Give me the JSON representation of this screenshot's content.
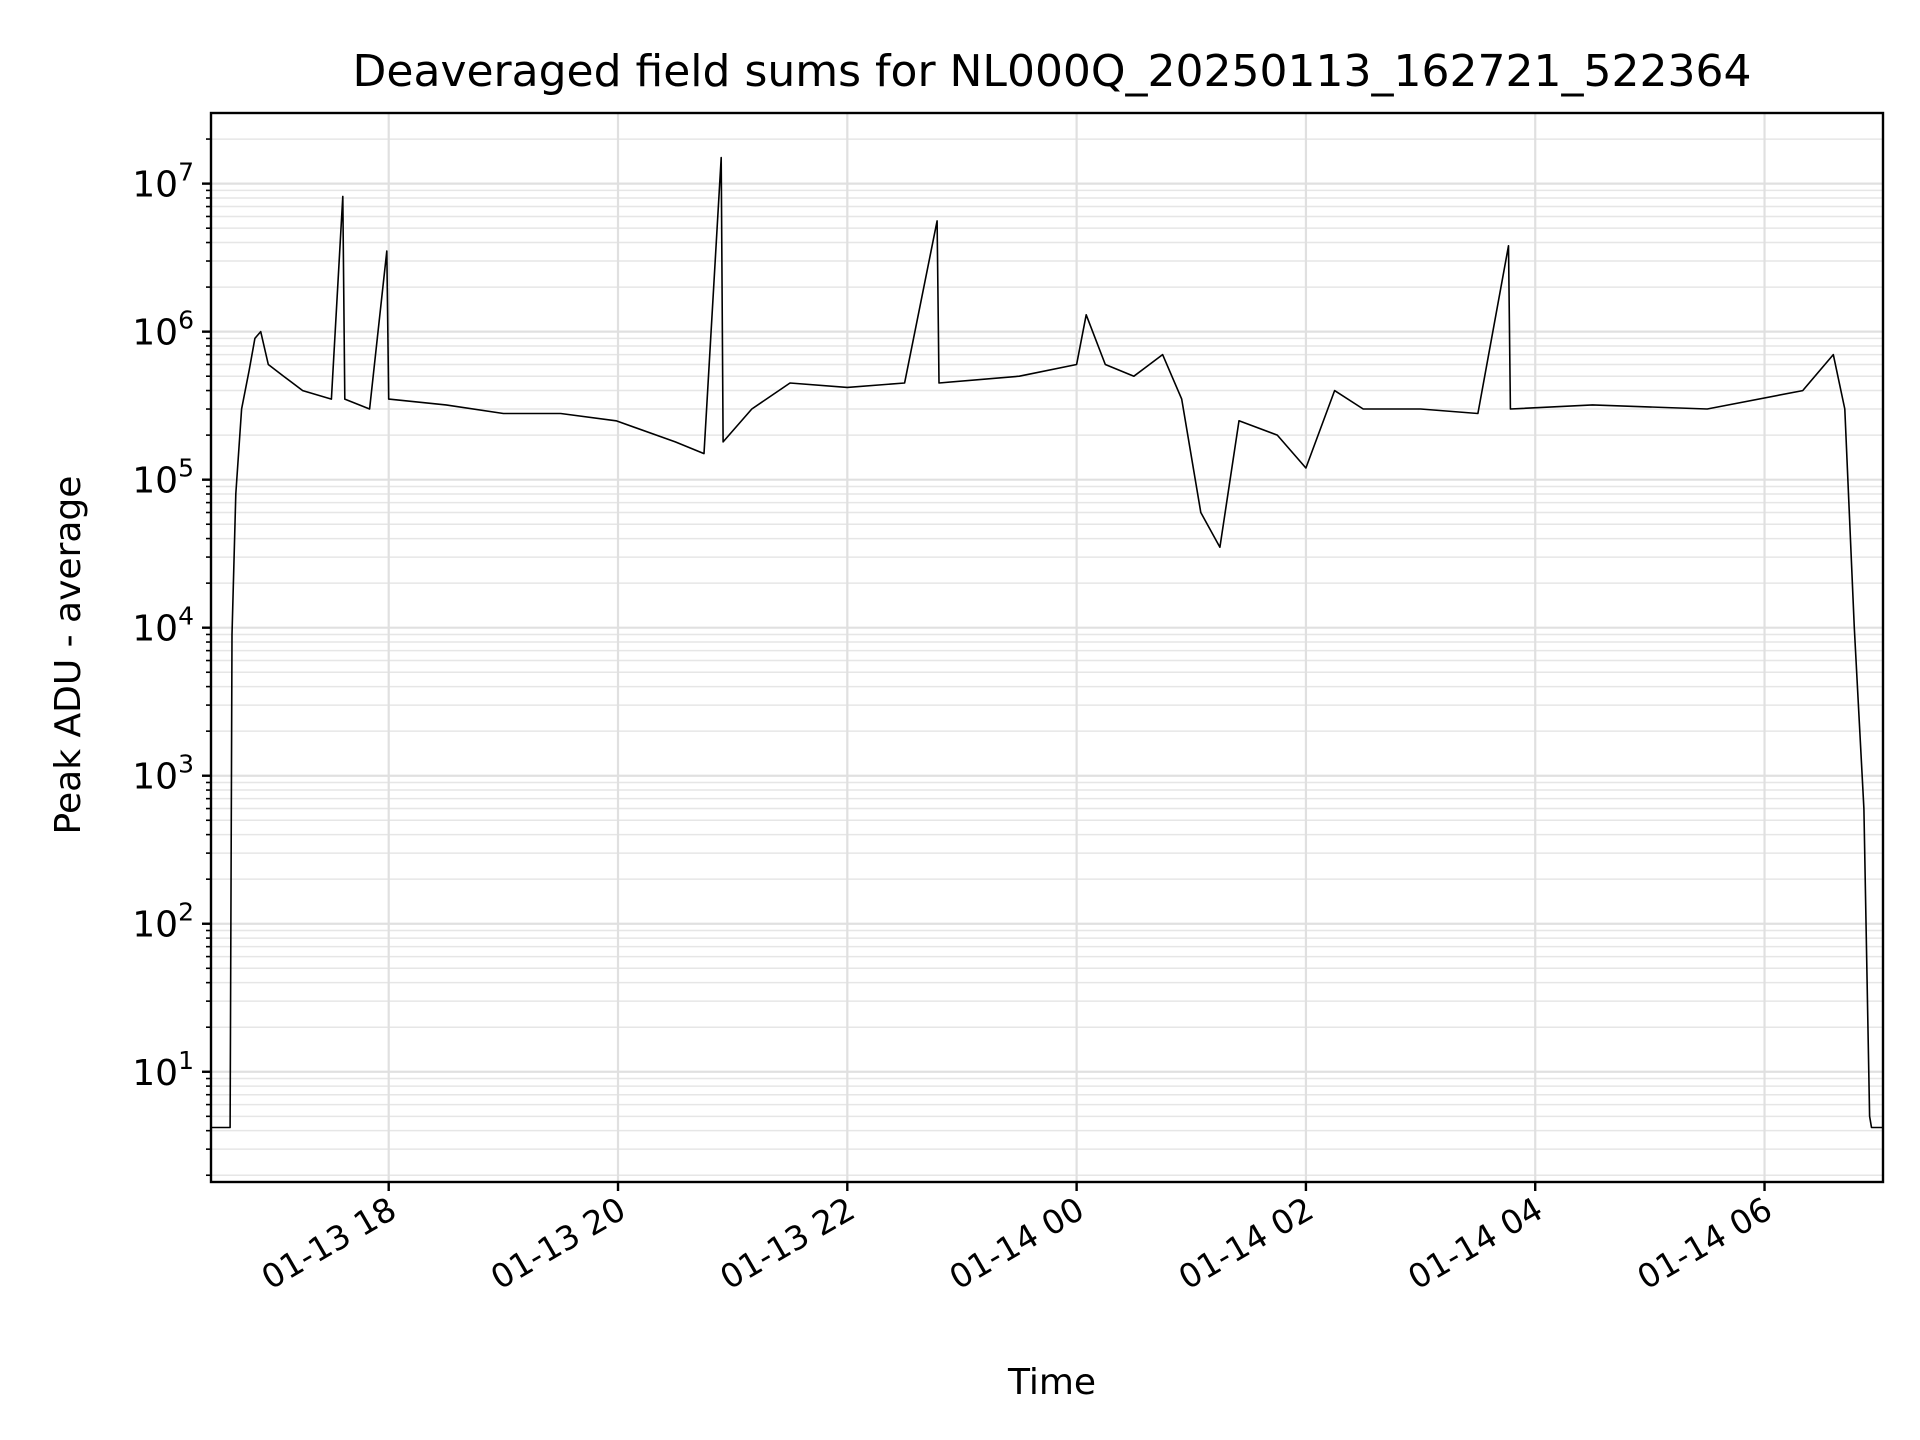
{
  "chart_data": {
    "type": "line",
    "title": "Deaveraged field sums for NL000Q_20250113_162721_522364",
    "xlabel": "Time",
    "ylabel": "Peak ADU - average",
    "yscale": "log",
    "ylim": [
      1.8,
      30000000
    ],
    "xlim": [
      "2025-01-13 16:27",
      "2025-01-14 07:02"
    ],
    "grid": "major and minor",
    "line_color": "#000000",
    "x_ticks": [
      {
        "t": "2025-01-13 18:00",
        "label": "01-13 18"
      },
      {
        "t": "2025-01-13 20:00",
        "label": "01-13 20"
      },
      {
        "t": "2025-01-13 22:00",
        "label": "01-13 22"
      },
      {
        "t": "2025-01-14 00:00",
        "label": "01-14 00"
      },
      {
        "t": "2025-01-14 02:00",
        "label": "01-14 02"
      },
      {
        "t": "2025-01-14 04:00",
        "label": "01-14 04"
      },
      {
        "t": "2025-01-14 06:00",
        "label": "01-14 06"
      }
    ],
    "y_ticks": [
      {
        "value": 10,
        "base": "10",
        "exp": "1"
      },
      {
        "value": 100,
        "base": "10",
        "exp": "2"
      },
      {
        "value": 1000,
        "base": "10",
        "exp": "3"
      },
      {
        "value": 10000,
        "base": "10",
        "exp": "4"
      },
      {
        "value": 100000,
        "base": "10",
        "exp": "5"
      },
      {
        "value": 1000000,
        "base": "10",
        "exp": "6"
      },
      {
        "value": 10000000,
        "base": "10",
        "exp": "7"
      }
    ],
    "series": [
      {
        "points": [
          [
            "2025-01-13 16:27",
            4.2
          ],
          [
            "2025-01-13 16:37",
            4.2
          ],
          [
            "2025-01-13 16:38",
            9000
          ],
          [
            "2025-01-13 16:40",
            80000
          ],
          [
            "2025-01-13 16:43",
            300000
          ],
          [
            "2025-01-13 16:47",
            550000
          ],
          [
            "2025-01-13 16:50",
            900000
          ],
          [
            "2025-01-13 16:53",
            1000000
          ],
          [
            "2025-01-13 16:57",
            600000
          ],
          [
            "2025-01-13 17:05",
            500000
          ],
          [
            "2025-01-13 17:15",
            400000
          ],
          [
            "2025-01-13 17:30",
            350000
          ],
          [
            "2025-01-13 17:36",
            8200000
          ],
          [
            "2025-01-13 17:37",
            350000
          ],
          [
            "2025-01-13 17:50",
            300000
          ],
          [
            "2025-01-13 17:59",
            3500000
          ],
          [
            "2025-01-13 18:00",
            350000
          ],
          [
            "2025-01-13 18:30",
            320000
          ],
          [
            "2025-01-13 19:00",
            280000
          ],
          [
            "2025-01-13 19:30",
            280000
          ],
          [
            "2025-01-13 19:59",
            250000
          ],
          [
            "2025-01-13 20:30",
            180000
          ],
          [
            "2025-01-13 20:45",
            150000
          ],
          [
            "2025-01-13 20:54",
            15000000
          ],
          [
            "2025-01-13 20:55",
            180000
          ],
          [
            "2025-01-13 21:10",
            300000
          ],
          [
            "2025-01-13 21:30",
            450000
          ],
          [
            "2025-01-13 22:00",
            420000
          ],
          [
            "2025-01-13 22:30",
            450000
          ],
          [
            "2025-01-13 22:47",
            5600000
          ],
          [
            "2025-01-13 22:48",
            450000
          ],
          [
            "2025-01-13 23:30",
            500000
          ],
          [
            "2025-01-14 00:00",
            600000
          ],
          [
            "2025-01-14 00:05",
            1300000
          ],
          [
            "2025-01-14 00:15",
            600000
          ],
          [
            "2025-01-14 00:30",
            500000
          ],
          [
            "2025-01-14 00:45",
            700000
          ],
          [
            "2025-01-14 00:55",
            350000
          ],
          [
            "2025-01-14 01:05",
            60000
          ],
          [
            "2025-01-14 01:15",
            35000
          ],
          [
            "2025-01-14 01:25",
            250000
          ],
          [
            "2025-01-14 01:45",
            200000
          ],
          [
            "2025-01-14 02:00",
            120000
          ],
          [
            "2025-01-14 02:15",
            400000
          ],
          [
            "2025-01-14 02:30",
            300000
          ],
          [
            "2025-01-14 03:00",
            300000
          ],
          [
            "2025-01-14 03:30",
            280000
          ],
          [
            "2025-01-14 03:46",
            3800000
          ],
          [
            "2025-01-14 03:47",
            300000
          ],
          [
            "2025-01-14 04:30",
            320000
          ],
          [
            "2025-01-14 05:30",
            300000
          ],
          [
            "2025-01-14 06:20",
            400000
          ],
          [
            "2025-01-14 06:36",
            700000
          ],
          [
            "2025-01-14 06:42",
            300000
          ],
          [
            "2025-01-14 06:47",
            10000
          ],
          [
            "2025-01-14 06:52",
            600
          ],
          [
            "2025-01-14 06:55",
            5
          ],
          [
            "2025-01-14 06:56",
            4.2
          ],
          [
            "2025-01-14 07:02",
            4.2
          ]
        ]
      }
    ]
  }
}
